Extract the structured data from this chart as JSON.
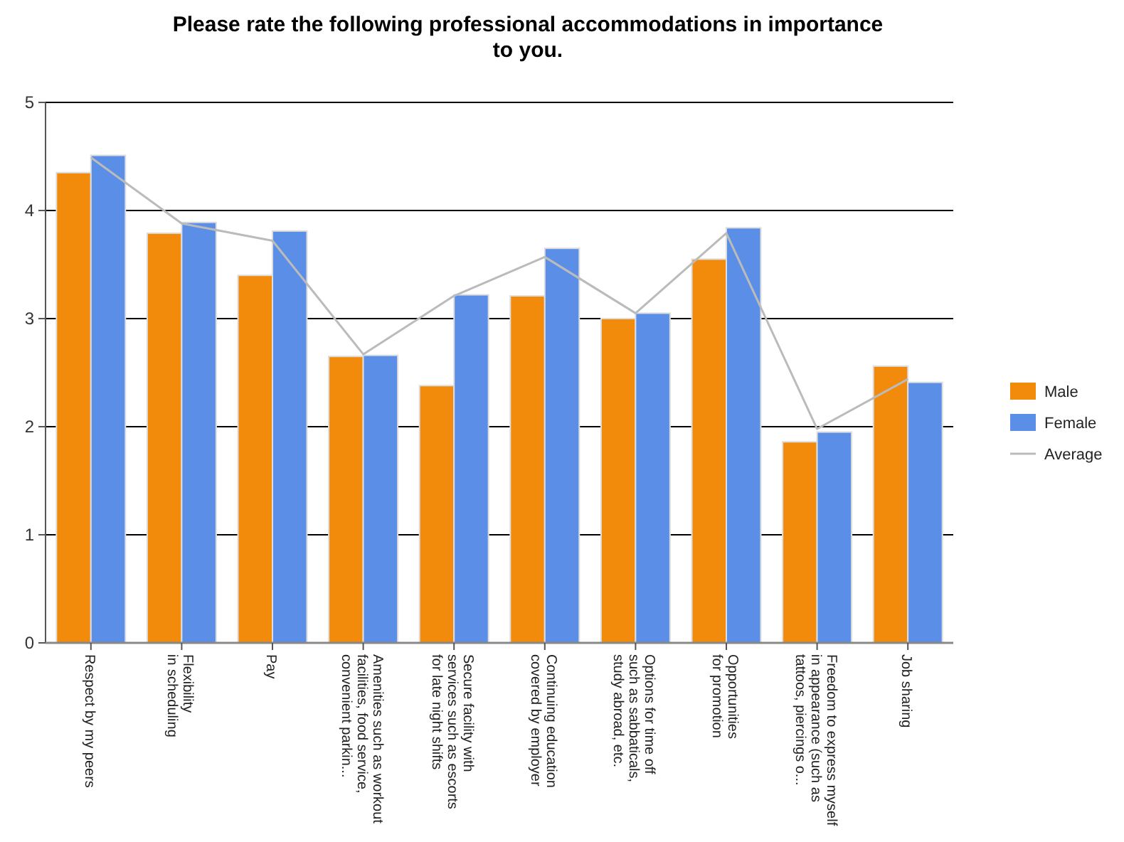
{
  "chart_data": {
    "type": "bar",
    "title": "Please rate the following professional accommodations in importance to you.",
    "categories": [
      "Respect by my peers",
      "Flexibility\nin scheduling",
      "Pay",
      "Amenities such as workout\nfacilities, food service,\nconvenient parkin...",
      "Secure facility with\nservices such as escorts\nfor late night shifts",
      "Continuing education\ncovered by employer",
      "Options for time off\nsuch as sabbaticals,\nstudy abroad, etc.",
      "Opportunities\nfor promotion",
      "Freedom to express myself\nin appearance (such as\ntattoos, piercings o...",
      "Job sharing"
    ],
    "series": [
      {
        "name": "Male",
        "color": "#f28a0c",
        "values": [
          4.35,
          3.79,
          3.4,
          2.65,
          2.38,
          3.21,
          3.0,
          3.55,
          1.86,
          2.56
        ]
      },
      {
        "name": "Female",
        "color": "#5b8ee6",
        "values": [
          4.51,
          3.89,
          3.81,
          2.66,
          3.22,
          3.65,
          3.05,
          3.84,
          1.95,
          2.41
        ]
      },
      {
        "name": "Average",
        "type": "line",
        "color": "#bbbbbb",
        "values": [
          4.49,
          3.88,
          3.72,
          2.67,
          3.21,
          3.57,
          3.05,
          3.79,
          1.98,
          2.44
        ]
      }
    ],
    "ylim": [
      0,
      5
    ],
    "yticks": [
      0,
      1,
      2,
      3,
      4,
      5
    ],
    "grid": "y",
    "legend": "right",
    "marker": "none"
  }
}
